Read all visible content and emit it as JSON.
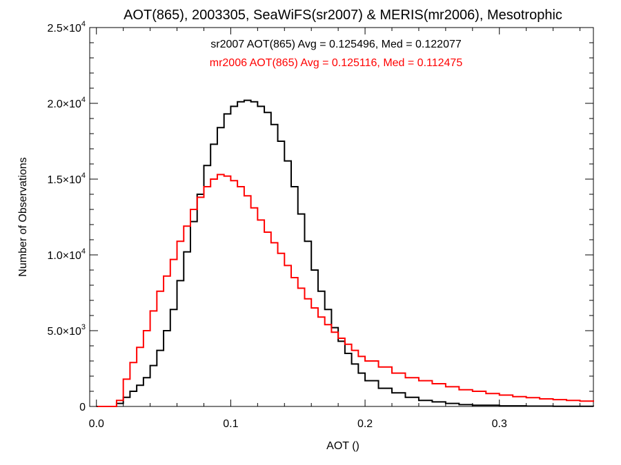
{
  "chart_data": {
    "type": "line",
    "title": "AOT(865), 2003305, SeaWiFS(sr2007) & MERIS(mr2006), Mesotrophic",
    "xlabel": "AOT ()",
    "ylabel": "Number of Observations",
    "xlim": [
      -0.005,
      0.37
    ],
    "ylim": [
      0,
      25000
    ],
    "x_ticks": [
      0.0,
      0.1,
      0.2,
      0.3
    ],
    "x_tick_labels": [
      "0.0",
      "0.1",
      "0.2",
      "0.3"
    ],
    "x_minor_step": 0.02,
    "y_ticks": [
      0,
      5000,
      10000,
      15000,
      20000,
      25000
    ],
    "y_tick_labels": [
      {
        "mantissa": "0",
        "exp": ""
      },
      {
        "mantissa": "5.0×10",
        "exp": "3"
      },
      {
        "mantissa": "1.0×10",
        "exp": "4"
      },
      {
        "mantissa": "1.5×10",
        "exp": "4"
      },
      {
        "mantissa": "2.0×10",
        "exp": "4"
      },
      {
        "mantissa": "2.5×10",
        "exp": "4"
      }
    ],
    "y_minor_step": 1000,
    "grid": false,
    "annotations": [
      {
        "text": "sr2007 AOT(865) Avg = 0.125496, Med = 0.122077",
        "color": "#000000"
      },
      {
        "text": "mr2006 AOT(865) Avg = 0.125116, Med = 0.112475",
        "color": "#ff0000"
      }
    ],
    "series": [
      {
        "color": "#000000",
        "style": "step",
        "x": [
          0.0,
          0.01,
          0.015,
          0.02,
          0.025,
          0.03,
          0.035,
          0.04,
          0.045,
          0.05,
          0.055,
          0.06,
          0.065,
          0.07,
          0.075,
          0.08,
          0.085,
          0.09,
          0.095,
          0.1,
          0.105,
          0.11,
          0.115,
          0.12,
          0.125,
          0.13,
          0.135,
          0.14,
          0.145,
          0.15,
          0.155,
          0.16,
          0.165,
          0.17,
          0.175,
          0.18,
          0.185,
          0.19,
          0.195,
          0.2,
          0.21,
          0.22,
          0.23,
          0.24,
          0.25,
          0.26,
          0.27,
          0.28,
          0.3,
          0.32,
          0.34,
          0.37
        ],
        "y": [
          0,
          0,
          200,
          600,
          1000,
          1400,
          1900,
          2700,
          3700,
          5000,
          6400,
          8300,
          10200,
          12200,
          14000,
          15900,
          17300,
          18400,
          19300,
          19800,
          20100,
          20200,
          20100,
          19800,
          19400,
          18600,
          17500,
          16200,
          14500,
          12700,
          10900,
          9000,
          7600,
          6400,
          5200,
          4300,
          3500,
          2800,
          2200,
          1700,
          1200,
          900,
          600,
          400,
          300,
          200,
          120,
          80,
          40,
          20,
          10,
          0
        ]
      },
      {
        "color": "#ff0000",
        "style": "step",
        "x": [
          0.0,
          0.01,
          0.015,
          0.02,
          0.025,
          0.03,
          0.035,
          0.04,
          0.045,
          0.05,
          0.055,
          0.06,
          0.065,
          0.07,
          0.075,
          0.08,
          0.085,
          0.09,
          0.095,
          0.1,
          0.105,
          0.11,
          0.115,
          0.12,
          0.125,
          0.13,
          0.135,
          0.14,
          0.145,
          0.15,
          0.155,
          0.16,
          0.165,
          0.17,
          0.175,
          0.18,
          0.185,
          0.19,
          0.195,
          0.2,
          0.21,
          0.22,
          0.23,
          0.24,
          0.25,
          0.26,
          0.27,
          0.28,
          0.29,
          0.3,
          0.31,
          0.32,
          0.33,
          0.34,
          0.35,
          0.36,
          0.37
        ],
        "y": [
          0,
          0,
          400,
          1800,
          2900,
          3900,
          5000,
          6300,
          7600,
          8600,
          9700,
          10900,
          11900,
          13000,
          13800,
          14500,
          15000,
          15300,
          15200,
          14900,
          14500,
          13900,
          13100,
          12300,
          11500,
          10800,
          10100,
          9300,
          8500,
          7800,
          7100,
          6500,
          5900,
          5400,
          4900,
          4500,
          4100,
          3700,
          3300,
          3000,
          2600,
          2200,
          1900,
          1700,
          1500,
          1300,
          1100,
          1000,
          850,
          750,
          650,
          580,
          500,
          450,
          400,
          350,
          300
        ]
      }
    ]
  }
}
